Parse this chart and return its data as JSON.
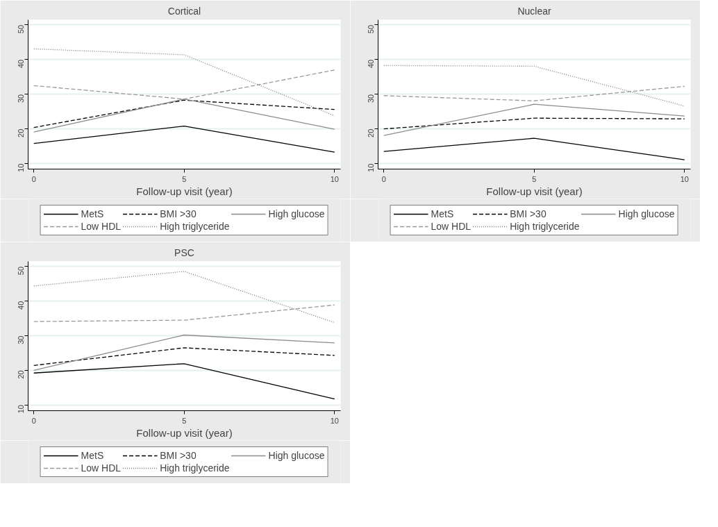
{
  "chart_data": [
    {
      "type": "line",
      "title": "Cortical",
      "xlabel": "Follow-up visit (year)",
      "x": [
        0,
        5,
        10
      ],
      "xlim": [
        -0.19,
        10.2
      ],
      "xticks": [
        0,
        5,
        10
      ],
      "ylim": [
        8.4,
        51.5
      ],
      "yticks": [
        10,
        20,
        30,
        40,
        50
      ],
      "grid": "y",
      "legend": "bottom",
      "marker": "none",
      "series": [
        {
          "name": "MetS",
          "color": "#000000",
          "line_style": "solid",
          "values": [
            15.8,
            20.8,
            13.3
          ]
        },
        {
          "name": "BMI >30",
          "color": "#000000",
          "line_style": "dashed",
          "values": [
            20.4,
            28.3,
            25.6
          ]
        },
        {
          "name": "High glucose",
          "color": "#8c8c8c",
          "line_style": "solid",
          "values": [
            19.1,
            28.6,
            19.9
          ]
        },
        {
          "name": "Low HDL",
          "color": "#999999",
          "line_style": "dashed",
          "values": [
            32.5,
            28.6,
            37.0
          ]
        },
        {
          "name": "High triglyceride",
          "color": "#7a7a7a",
          "line_style": "dotted",
          "values": [
            43.1,
            41.4,
            23.8
          ]
        }
      ]
    },
    {
      "type": "line",
      "title": "Nuclear",
      "xlabel": "Follow-up visit (year)",
      "x": [
        0,
        5,
        10
      ],
      "xlim": [
        -0.19,
        10.2
      ],
      "xticks": [
        0,
        5,
        10
      ],
      "ylim": [
        8.4,
        51.5
      ],
      "yticks": [
        10,
        20,
        30,
        40,
        50
      ],
      "grid": "y",
      "legend": "bottom",
      "marker": "none",
      "series": [
        {
          "name": "MetS",
          "color": "#000000",
          "line_style": "solid",
          "values": [
            13.5,
            17.3,
            11.1
          ]
        },
        {
          "name": "BMI >30",
          "color": "#000000",
          "line_style": "dashed",
          "values": [
            20.0,
            23.1,
            22.9
          ]
        },
        {
          "name": "High glucose",
          "color": "#8c8c8c",
          "line_style": "solid",
          "values": [
            18.1,
            27.1,
            23.7
          ]
        },
        {
          "name": "Low HDL",
          "color": "#999999",
          "line_style": "dashed",
          "values": [
            29.6,
            28.1,
            32.3
          ]
        },
        {
          "name": "High triglyceride",
          "color": "#7a7a7a",
          "line_style": "dotted",
          "values": [
            38.3,
            38.1,
            26.6
          ]
        }
      ]
    },
    {
      "type": "line",
      "title": "PSC",
      "xlabel": "Follow-up visit (year)",
      "x": [
        0,
        5,
        10
      ],
      "xlim": [
        -0.19,
        10.2
      ],
      "xticks": [
        0,
        5,
        10
      ],
      "ylim": [
        8.3,
        51.5
      ],
      "yticks": [
        10,
        20,
        30,
        40,
        50
      ],
      "grid": "y",
      "legend": "bottom",
      "marker": "none",
      "series": [
        {
          "name": "MetS",
          "color": "#000000",
          "line_style": "solid",
          "values": [
            19.2,
            21.9,
            11.7
          ]
        },
        {
          "name": "BMI >30",
          "color": "#000000",
          "line_style": "dashed",
          "values": [
            21.4,
            26.5,
            24.3
          ]
        },
        {
          "name": "High glucose",
          "color": "#8c8c8c",
          "line_style": "solid",
          "values": [
            20.0,
            30.2,
            27.9
          ]
        },
        {
          "name": "Low HDL",
          "color": "#999999",
          "line_style": "dashed",
          "values": [
            34.1,
            34.5,
            38.9
          ]
        },
        {
          "name": "High triglyceride",
          "color": "#7a7a7a",
          "line_style": "dotted",
          "values": [
            44.4,
            48.6,
            33.8
          ]
        }
      ]
    }
  ]
}
